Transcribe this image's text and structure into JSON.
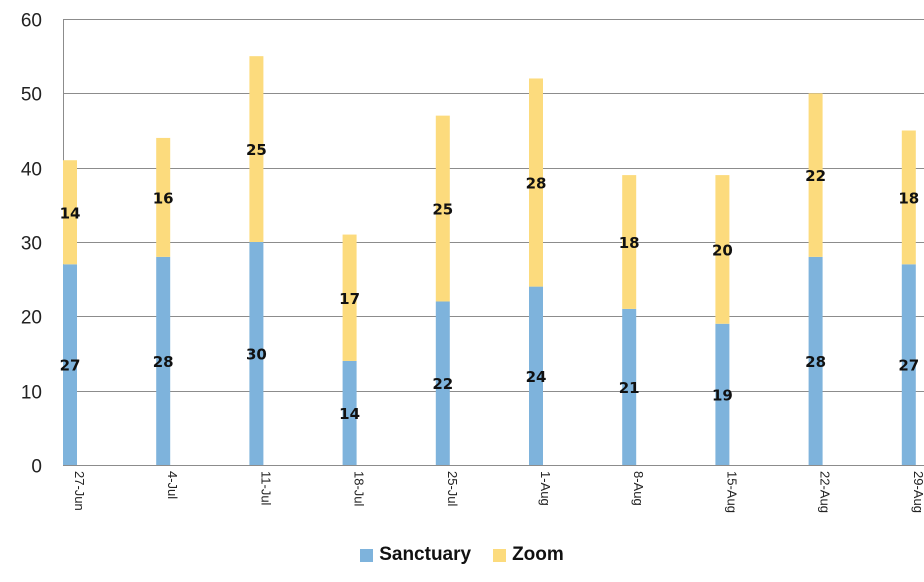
{
  "chart_data": {
    "type": "bar",
    "stacked": true,
    "categories": [
      "27-Jun",
      "4-Jul",
      "11-Jul",
      "18-Jul",
      "25-Jul",
      "1-Aug",
      "8-Aug",
      "15-Aug",
      "22-Aug",
      "29-Aug"
    ],
    "series": [
      {
        "name": "Sanctuary",
        "color": "#7eb3dc",
        "values": [
          27,
          28,
          30,
          14,
          22,
          24,
          21,
          19,
          28,
          27
        ]
      },
      {
        "name": "Zoom",
        "color": "#fcdb7d",
        "values": [
          14,
          16,
          25,
          17,
          25,
          28,
          18,
          20,
          22,
          18
        ]
      }
    ],
    "title": "",
    "xlabel": "",
    "ylabel": "",
    "ylim": [
      0,
      60
    ],
    "yticks": [
      "0",
      "10",
      "20",
      "30",
      "40",
      "50",
      "60"
    ],
    "grid": true,
    "legend_position": "bottom"
  }
}
